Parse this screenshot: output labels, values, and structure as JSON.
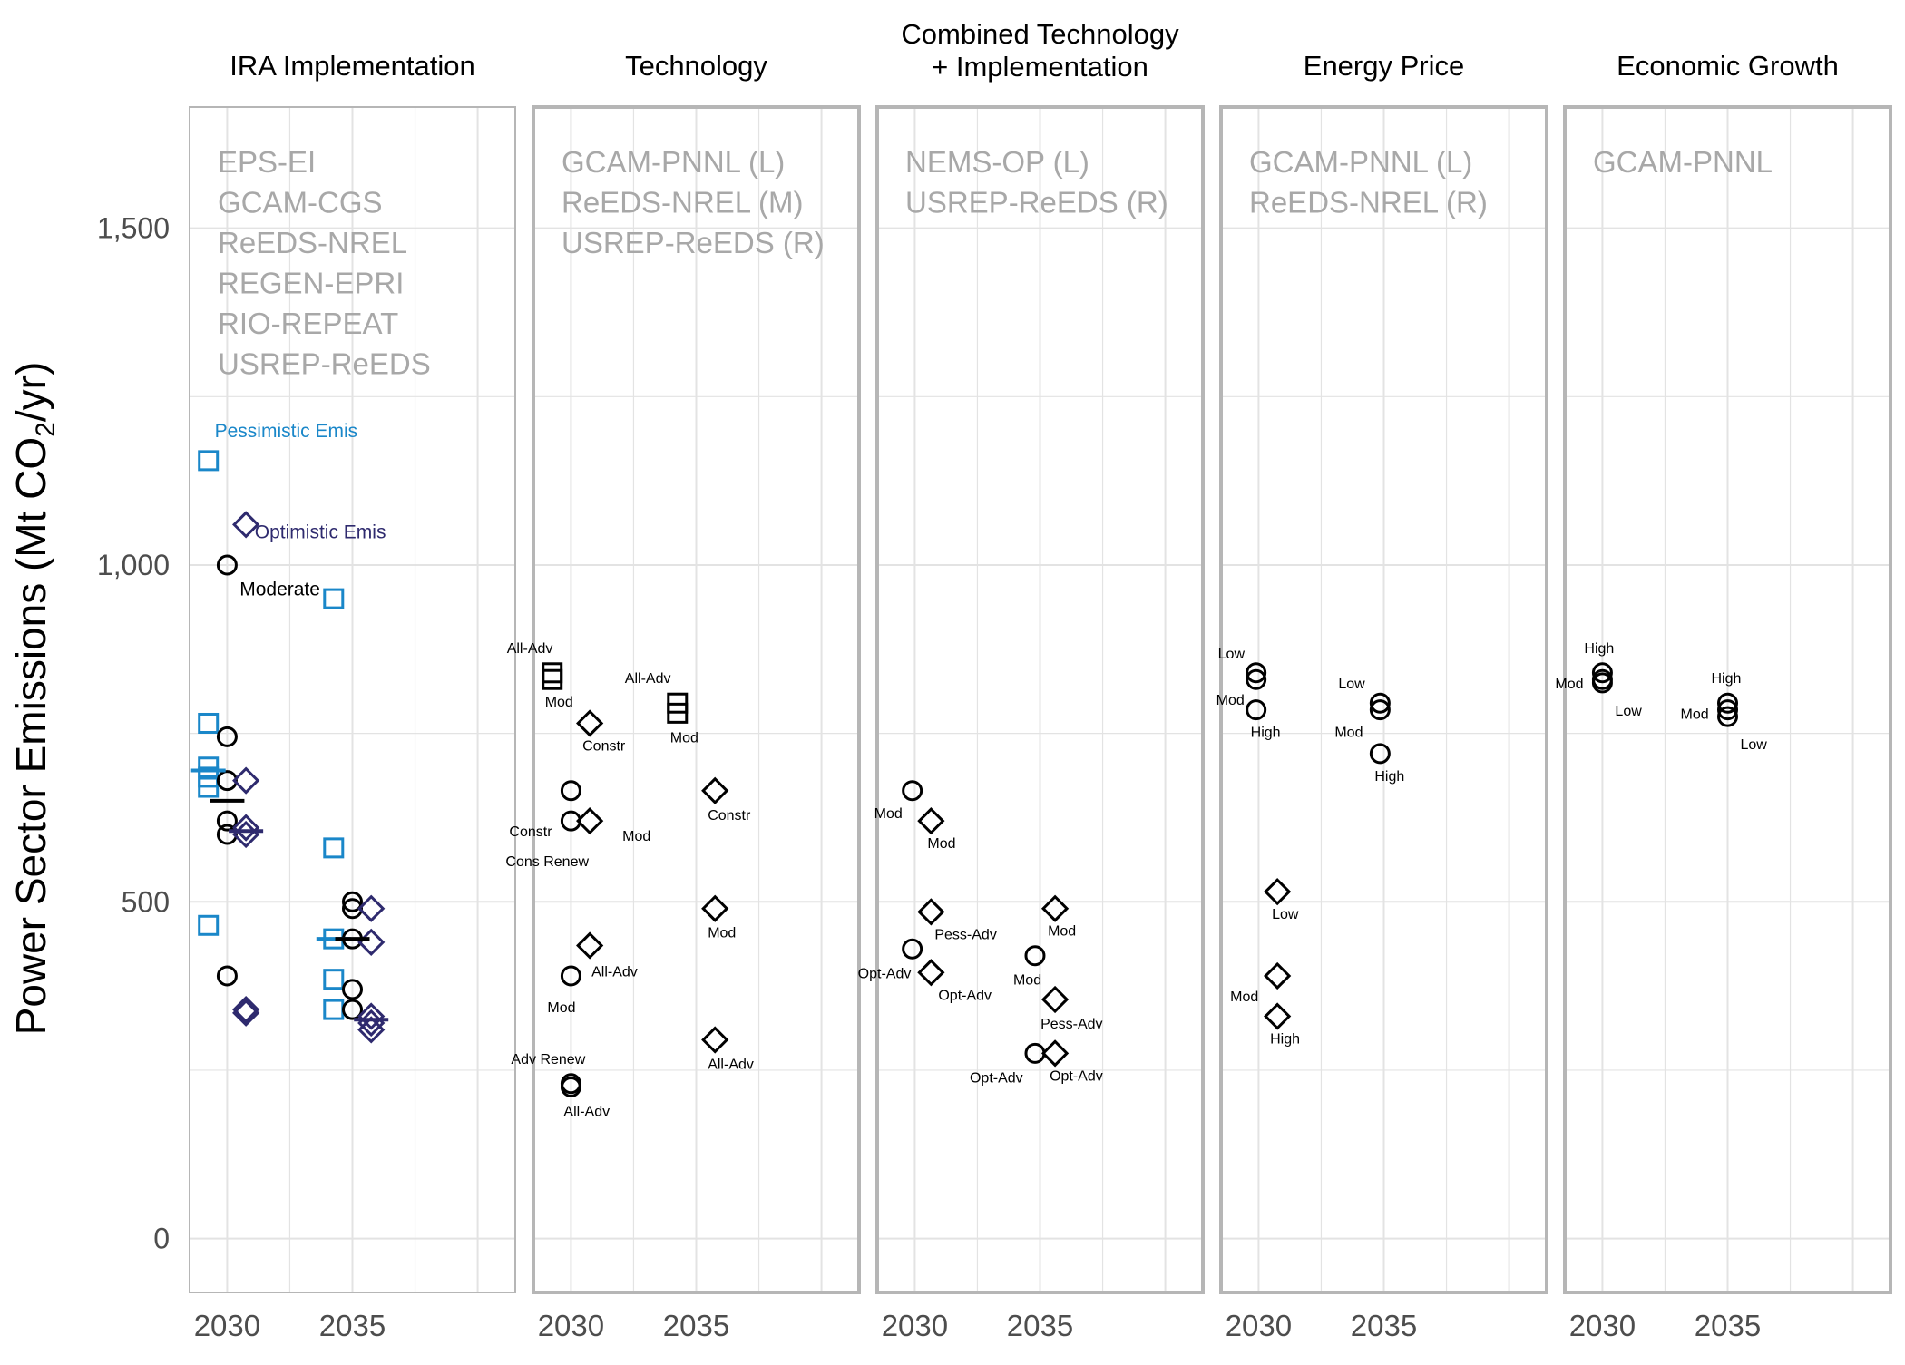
{
  "colors": {
    "pessimistic": "#1a87c9",
    "optimistic": "#2e2a6e",
    "moderate": "#000000",
    "model_text": "#a8a8a8",
    "grid": "#e3e3e3",
    "frame": "#b6b6b6",
    "axis_text": "#4d4d4d"
  },
  "chart_data": {
    "type": "scatter",
    "ylabel": "Power Sector Emissions (Mt CO2/yr)",
    "ylabel_parts": [
      "Power Sector Emissions (Mt CO",
      "2",
      "/yr)"
    ],
    "ylim": [
      -80,
      1680
    ],
    "y_ticks": [
      0,
      500,
      1000,
      1500
    ],
    "y_tick_labels": [
      "0",
      "500",
      "1,000",
      "1,500"
    ],
    "x_categories": [
      "2030",
      "2035"
    ],
    "grid": true,
    "panels": [
      {
        "title": [
          "IRA Implementation"
        ],
        "models": [
          "EPS-EI",
          "GCAM-CGS",
          "ReEDS-NREL",
          "REGEN-EPRI",
          "RIO-REPEAT",
          "USREP-ReEDS"
        ],
        "series": [
          {
            "name": "Pessimistic Emis",
            "shape": "square",
            "color": "pessimistic",
            "year": "2030",
            "offset": -0.15,
            "values": [
              1155,
              765,
              700,
              685,
              670,
              465
            ]
          },
          {
            "name": "Moderate",
            "shape": "circle",
            "color": "moderate",
            "year": "2030",
            "offset": 0,
            "values": [
              1000,
              745,
              680,
              620,
              600,
              390
            ]
          },
          {
            "name": "Optimistic Emis",
            "shape": "diamond",
            "color": "optimistic",
            "year": "2030",
            "offset": 0.15,
            "values": [
              1060,
              680,
              610,
              600,
              340,
              335
            ]
          },
          {
            "name": "",
            "shape": "square",
            "color": "pessimistic",
            "year": "2035",
            "offset": -0.15,
            "values": [
              950,
              580,
              445,
              385,
              340
            ]
          },
          {
            "name": "",
            "shape": "circle",
            "color": "moderate",
            "year": "2035",
            "offset": 0,
            "values": [
              500,
              490,
              445,
              370,
              340
            ]
          },
          {
            "name": "",
            "shape": "diamond",
            "color": "optimistic",
            "year": "2035",
            "offset": 0.15,
            "values": [
              490,
              440,
              330,
              320,
              310
            ]
          }
        ],
        "medians": [
          {
            "year": "2030",
            "offset": -0.15,
            "value": 695,
            "color": "pessimistic"
          },
          {
            "year": "2030",
            "offset": 0,
            "value": 650,
            "color": "moderate"
          },
          {
            "year": "2030",
            "offset": 0.15,
            "value": 605,
            "color": "optimistic"
          },
          {
            "year": "2035",
            "offset": -0.15,
            "value": 445,
            "color": "pessimistic"
          },
          {
            "year": "2035",
            "offset": 0,
            "value": 445,
            "color": "moderate"
          },
          {
            "year": "2035",
            "offset": 0.15,
            "value": 325,
            "color": "optimistic"
          }
        ],
        "annotations": [
          {
            "text": "Pessimistic Emis",
            "color": "pessimistic",
            "year": "2030",
            "offset": -0.1,
            "value": 1190,
            "size": 21
          },
          {
            "text": "Optimistic Emis",
            "color": "optimistic",
            "year": "2030",
            "offset": 0.22,
            "value": 1040,
            "size": 21
          },
          {
            "text": "Moderate",
            "color": "moderate",
            "year": "2030",
            "offset": 0.1,
            "value": 955,
            "size": 21
          }
        ]
      },
      {
        "title": [
          "Technology"
        ],
        "models": [
          "GCAM-PNNL (L)",
          "ReEDS-NREL (M)",
          "USREP-ReEDS (R)"
        ],
        "points": [
          {
            "shape": "square",
            "year": "2030",
            "offset": -0.15,
            "value": 840,
            "label": "All-Adv",
            "label_dx": -50,
            "label_dy": -22
          },
          {
            "shape": "square",
            "year": "2030",
            "offset": -0.15,
            "value": 830,
            "label": "Mod",
            "label_dx": -8,
            "label_dy": 30
          },
          {
            "shape": "circle",
            "year": "2030",
            "offset": 0,
            "value": 665,
            "label": "Constr",
            "label_dx": -68,
            "label_dy": 50
          },
          {
            "shape": "circle",
            "year": "2030",
            "offset": 0,
            "value": 620,
            "label": "Cons Renew",
            "label_dx": -72,
            "label_dy": 50
          },
          {
            "shape": "circle",
            "year": "2030",
            "offset": 0,
            "value": 390,
            "label": "Mod",
            "label_dx": -26,
            "label_dy": 40
          },
          {
            "shape": "circle",
            "year": "2030",
            "offset": 0,
            "value": 230,
            "label": "Adv Renew",
            "label_dx": -66,
            "label_dy": -22
          },
          {
            "shape": "circle",
            "year": "2030",
            "offset": 0,
            "value": 225,
            "label": "All-Adv",
            "label_dx": -8,
            "label_dy": 32
          },
          {
            "shape": "diamond",
            "year": "2030",
            "offset": 0.15,
            "value": 765,
            "label": "Constr",
            "label_dx": -8,
            "label_dy": 30
          },
          {
            "shape": "diamond",
            "year": "2030",
            "offset": 0.15,
            "value": 620,
            "label": "Mod",
            "label_dx": 36,
            "label_dy": 22
          },
          {
            "shape": "diamond",
            "year": "2030",
            "offset": 0.15,
            "value": 435,
            "label": "All-Adv",
            "label_dx": 2,
            "label_dy": 34
          },
          {
            "shape": "square",
            "year": "2035",
            "offset": -0.15,
            "value": 795,
            "label": "All-Adv",
            "label_dx": -58,
            "label_dy": -22
          },
          {
            "shape": "square",
            "year": "2035",
            "offset": -0.15,
            "value": 780,
            "label": "Mod",
            "label_dx": -8,
            "label_dy": 32
          },
          {
            "shape": "diamond",
            "year": "2035",
            "offset": 0.15,
            "value": 665,
            "label": "Constr",
            "label_dx": -8,
            "label_dy": 32
          },
          {
            "shape": "diamond",
            "year": "2035",
            "offset": 0.15,
            "value": 490,
            "label": "Mod",
            "label_dx": -8,
            "label_dy": 32
          },
          {
            "shape": "diamond",
            "year": "2035",
            "offset": 0.15,
            "value": 295,
            "label": "All-Adv",
            "label_dx": -8,
            "label_dy": 32
          }
        ]
      },
      {
        "title": [
          "Combined Technology",
          "+ Implementation"
        ],
        "models": [
          "NEMS-OP (L)",
          "USREP-ReEDS (R)"
        ],
        "points": [
          {
            "shape": "circle",
            "year": "2030",
            "offset": -0.02,
            "value": 665,
            "label": "Mod",
            "label_dx": -42,
            "label_dy": 30
          },
          {
            "shape": "circle",
            "year": "2030",
            "offset": -0.02,
            "value": 430,
            "label": "Opt-Adv",
            "label_dx": -60,
            "label_dy": 32
          },
          {
            "shape": "diamond",
            "year": "2030",
            "offset": 0.13,
            "value": 620,
            "label": "Mod",
            "label_dx": -4,
            "label_dy": 30
          },
          {
            "shape": "diamond",
            "year": "2030",
            "offset": 0.13,
            "value": 485,
            "label": "Pess-Adv",
            "label_dx": 4,
            "label_dy": 30
          },
          {
            "shape": "diamond",
            "year": "2030",
            "offset": 0.13,
            "value": 395,
            "label": "Opt-Adv",
            "label_dx": 8,
            "label_dy": 30
          },
          {
            "shape": "circle",
            "year": "2035",
            "offset": -0.04,
            "value": 420,
            "label": "Mod",
            "label_dx": -24,
            "label_dy": 32
          },
          {
            "shape": "circle",
            "year": "2035",
            "offset": -0.04,
            "value": 275,
            "label": "Opt-Adv",
            "label_dx": -72,
            "label_dy": 32
          },
          {
            "shape": "diamond",
            "year": "2035",
            "offset": 0.12,
            "value": 490,
            "label": "Mod",
            "label_dx": -8,
            "label_dy": 30
          },
          {
            "shape": "diamond",
            "year": "2035",
            "offset": 0.12,
            "value": 355,
            "label": "Pess-Adv",
            "label_dx": -16,
            "label_dy": 32
          },
          {
            "shape": "diamond",
            "year": "2035",
            "offset": 0.12,
            "value": 275,
            "label": "Opt-Adv",
            "label_dx": -6,
            "label_dy": 30
          }
        ]
      },
      {
        "title": [
          "Energy Price"
        ],
        "models": [
          "GCAM-PNNL (L)",
          "ReEDS-NREL (R)"
        ],
        "points": [
          {
            "shape": "circle",
            "year": "2030",
            "offset": -0.02,
            "value": 840,
            "label": "Low",
            "label_dx": -42,
            "label_dy": -16
          },
          {
            "shape": "circle",
            "year": "2030",
            "offset": -0.02,
            "value": 830,
            "label": "Mod",
            "label_dx": -44,
            "label_dy": 28
          },
          {
            "shape": "circle",
            "year": "2030",
            "offset": -0.02,
            "value": 785,
            "label": "High",
            "label_dx": -6,
            "label_dy": 30
          },
          {
            "shape": "diamond",
            "year": "2030",
            "offset": 0.15,
            "value": 515,
            "label": "Low",
            "label_dx": -6,
            "label_dy": 30
          },
          {
            "shape": "diamond",
            "year": "2030",
            "offset": 0.15,
            "value": 390,
            "label": "Mod",
            "label_dx": -52,
            "label_dy": 28
          },
          {
            "shape": "diamond",
            "year": "2030",
            "offset": 0.15,
            "value": 330,
            "label": "High",
            "label_dx": -8,
            "label_dy": 30
          },
          {
            "shape": "circle",
            "year": "2035",
            "offset": -0.03,
            "value": 795,
            "label": "Low",
            "label_dx": -46,
            "label_dy": -16
          },
          {
            "shape": "circle",
            "year": "2035",
            "offset": -0.03,
            "value": 785,
            "label": "Mod",
            "label_dx": -50,
            "label_dy": 30
          },
          {
            "shape": "circle",
            "year": "2035",
            "offset": -0.03,
            "value": 720,
            "label": "High",
            "label_dx": -6,
            "label_dy": 30
          }
        ]
      },
      {
        "title": [
          "Economic Growth"
        ],
        "models": [
          "GCAM-PNNL"
        ],
        "points": [
          {
            "shape": "circle",
            "year": "2030",
            "offset": 0,
            "value": 840,
            "label": "High",
            "label_dx": -20,
            "label_dy": -22
          },
          {
            "shape": "circle",
            "year": "2030",
            "offset": 0,
            "value": 830,
            "label": "Mod",
            "label_dx": -52,
            "label_dy": 10
          },
          {
            "shape": "circle",
            "year": "2030",
            "offset": 0,
            "value": 825,
            "label": "Low",
            "label_dx": 14,
            "label_dy": 36
          },
          {
            "shape": "circle",
            "year": "2035",
            "offset": 0,
            "value": 795,
            "label": "High",
            "label_dx": -18,
            "label_dy": -22
          },
          {
            "shape": "circle",
            "year": "2035",
            "offset": 0,
            "value": 785,
            "label": "Mod",
            "label_dx": -52,
            "label_dy": 10
          },
          {
            "shape": "circle",
            "year": "2035",
            "offset": 0,
            "value": 775,
            "label": "Low",
            "label_dx": 14,
            "label_dy": 36
          }
        ]
      }
    ]
  }
}
